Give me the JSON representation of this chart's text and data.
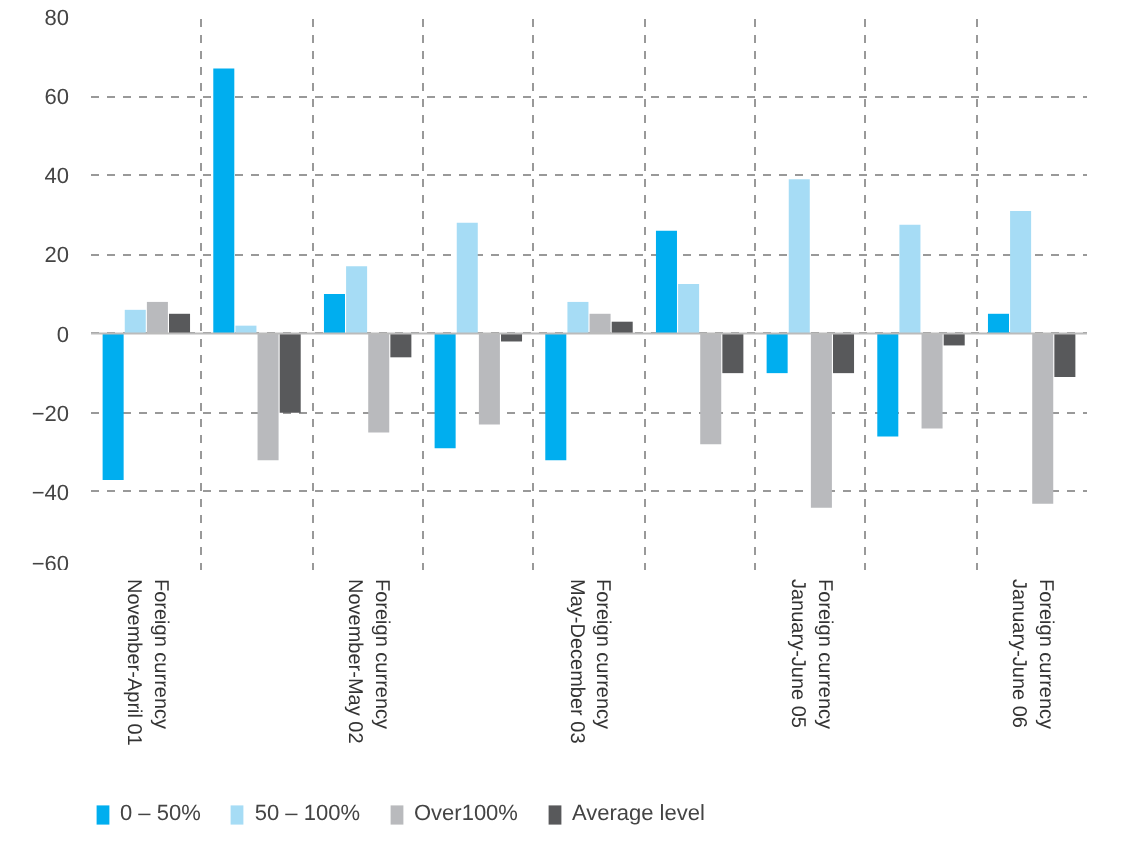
{
  "chart_data": {
    "type": "bar",
    "categories": [
      "Foreign currency\nNovember-April 01",
      null,
      "Foreign currency\nNovember-May 02",
      null,
      "Foreign currency\nMay-December 03",
      null,
      "Foreign currency\nJanuary-June 05",
      null,
      "Foreign currency\nJanuary-June 06"
    ],
    "series": [
      {
        "name": "0 – 50%",
        "color": "#00aeef",
        "values": [
          -37,
          67,
          10,
          -29,
          -32,
          26,
          -10,
          -26,
          5
        ]
      },
      {
        "name": "50 – 100%",
        "color": "#a6dcf5",
        "values": [
          6,
          2,
          17,
          28,
          8,
          12.5,
          39,
          27.5,
          31
        ]
      },
      {
        "name": "Over100%",
        "color": "#b9babd",
        "values": [
          8,
          -32,
          -25,
          -23,
          5,
          -28,
          -44,
          -24,
          -43
        ]
      },
      {
        "name": "Average level",
        "color": "#58595b",
        "values": [
          5,
          -20,
          -6,
          -2,
          3,
          -10,
          -10,
          -3,
          -11
        ]
      }
    ],
    "ylim": [
      -60,
      80
    ],
    "yticks": [
      -60,
      -40,
      -20,
      0,
      20,
      40,
      60,
      80
    ],
    "grid": true,
    "legend": "bottom"
  }
}
